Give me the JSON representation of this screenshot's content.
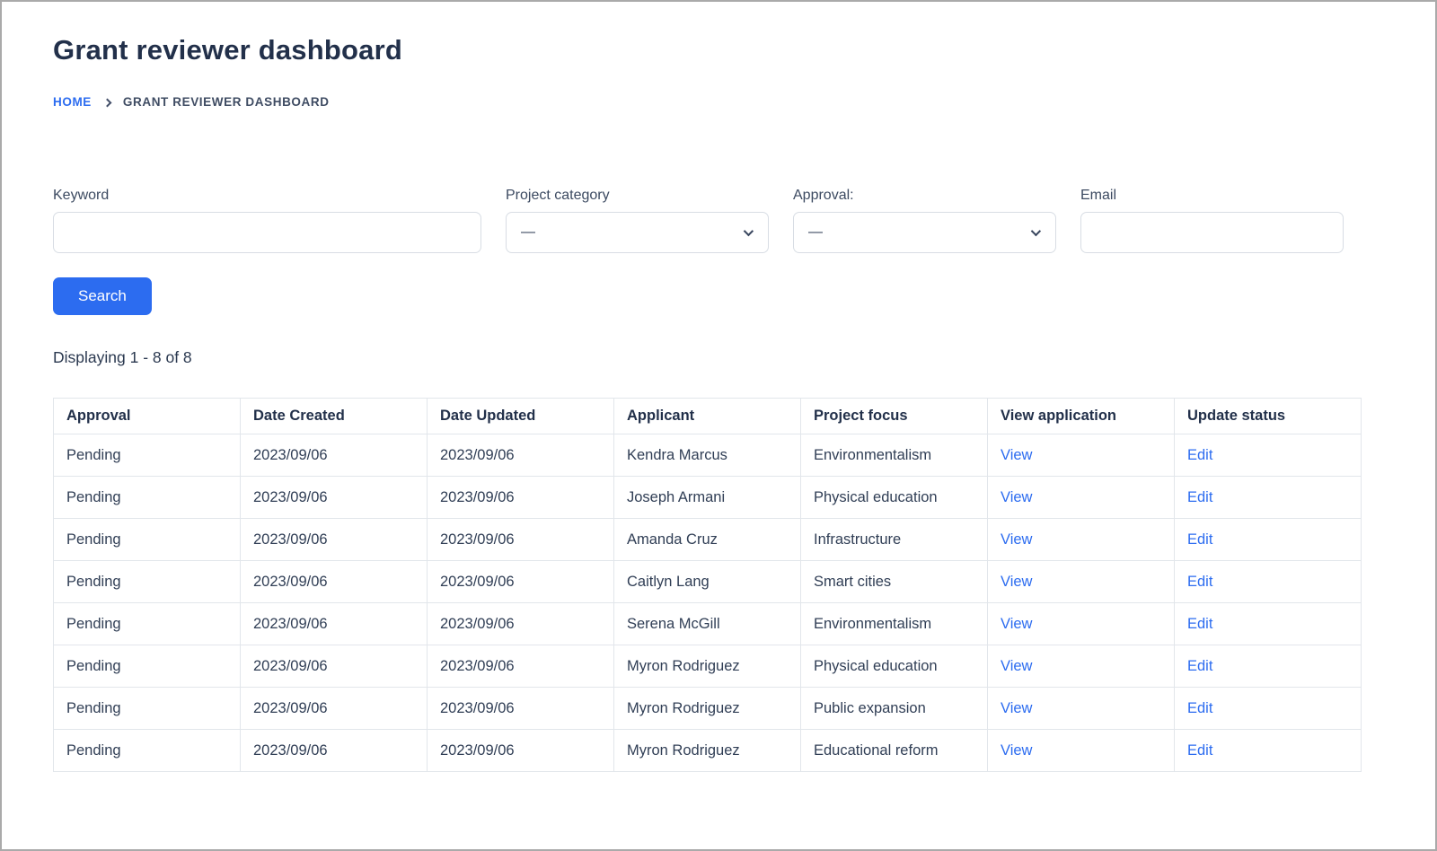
{
  "page": {
    "title": "Grant reviewer dashboard"
  },
  "breadcrumb": {
    "home": "HOME",
    "current": "GRANT REVIEWER DASHBOARD"
  },
  "filters": {
    "keyword": {
      "label": "Keyword",
      "value": "",
      "placeholder": ""
    },
    "project_category": {
      "label": "Project category",
      "selected": "—"
    },
    "approval": {
      "label": "Approval:",
      "selected": "—"
    },
    "email": {
      "label": "Email",
      "value": "",
      "placeholder": ""
    },
    "search_label": "Search"
  },
  "summary": "Displaying 1 - 8 of 8",
  "table": {
    "headers": [
      "Approval",
      "Date Created",
      "Date Updated",
      "Applicant",
      "Project focus",
      "View application",
      "Update status"
    ],
    "view_label": "View",
    "edit_label": "Edit",
    "rows": [
      {
        "approval": "Pending",
        "date_created": "2023/09/06",
        "date_updated": "2023/09/06",
        "applicant": "Kendra Marcus",
        "project_focus": "Environmentalism"
      },
      {
        "approval": "Pending",
        "date_created": "2023/09/06",
        "date_updated": "2023/09/06",
        "applicant": "Joseph Armani",
        "project_focus": "Physical education"
      },
      {
        "approval": "Pending",
        "date_created": "2023/09/06",
        "date_updated": "2023/09/06",
        "applicant": "Amanda Cruz",
        "project_focus": "Infrastructure"
      },
      {
        "approval": "Pending",
        "date_created": "2023/09/06",
        "date_updated": "2023/09/06",
        "applicant": "Caitlyn Lang",
        "project_focus": "Smart cities"
      },
      {
        "approval": "Pending",
        "date_created": "2023/09/06",
        "date_updated": "2023/09/06",
        "applicant": "Serena McGill",
        "project_focus": "Environmentalism"
      },
      {
        "approval": "Pending",
        "date_created": "2023/09/06",
        "date_updated": "2023/09/06",
        "applicant": "Myron Rodriguez",
        "project_focus": "Physical education"
      },
      {
        "approval": "Pending",
        "date_created": "2023/09/06",
        "date_updated": "2023/09/06",
        "applicant": "Myron Rodriguez",
        "project_focus": "Public expansion"
      },
      {
        "approval": "Pending",
        "date_created": "2023/09/06",
        "date_updated": "2023/09/06",
        "applicant": "Myron Rodriguez",
        "project_focus": "Educational reform"
      }
    ]
  },
  "colors": {
    "accent": "#2c6cf0",
    "heading": "#22304a",
    "text": "#303e55",
    "table_border": "#e2e6eb"
  }
}
